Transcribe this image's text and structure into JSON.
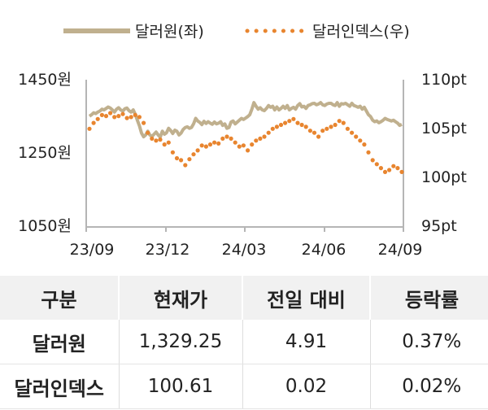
{
  "chart_data": {
    "type": "line",
    "legend": {
      "placement": "top",
      "dollar_label": "달러원(좌)",
      "index_label": "달러인덱스(우)"
    },
    "x_ticks": [
      "23/09",
      "23/12",
      "24/03",
      "24/06",
      "24/09"
    ],
    "y_left": {
      "ticks": [
        "1450원",
        "1250원",
        "1050원"
      ],
      "range": [
        1050,
        1450
      ]
    },
    "y_right": {
      "ticks": [
        "110pt",
        "105pt",
        "100pt",
        "95pt"
      ],
      "range": [
        95,
        110
      ]
    },
    "series": [
      {
        "name": "달러원(좌)",
        "axis": "left",
        "color": "#c0b08e",
        "style": "solid",
        "values": [
          1351,
          1355,
          1360,
          1358,
          1362,
          1365,
          1370,
          1368,
          1372,
          1376,
          1373,
          1368,
          1362,
          1370,
          1374,
          1368,
          1365,
          1371,
          1373,
          1366,
          1362,
          1368,
          1356,
          1340,
          1325,
          1305,
          1295,
          1300,
          1310,
          1300,
          1296,
          1302,
          1308,
          1300,
          1294,
          1310,
          1302,
          1306,
          1318,
          1312,
          1304,
          1313,
          1310,
          1300,
          1305,
          1315,
          1320,
          1322,
          1318,
          1320,
          1330,
          1345,
          1338,
          1334,
          1328,
          1337,
          1331,
          1336,
          1332,
          1329,
          1335,
          1330,
          1332,
          1336,
          1326,
          1330,
          1318,
          1320,
          1335,
          1338,
          1330,
          1335,
          1340,
          1345,
          1342,
          1346,
          1350,
          1355,
          1370,
          1388,
          1378,
          1370,
          1374,
          1368,
          1366,
          1372,
          1380,
          1375,
          1378,
          1368,
          1376,
          1368,
          1372,
          1378,
          1372,
          1380,
          1368,
          1372,
          1375,
          1370,
          1380,
          1385,
          1376,
          1378,
          1372,
          1380,
          1382,
          1385,
          1386,
          1382,
          1384,
          1388,
          1382,
          1380,
          1384,
          1386,
          1386,
          1382,
          1380,
          1388,
          1378,
          1385,
          1384,
          1386,
          1382,
          1378,
          1386,
          1380,
          1378,
          1375,
          1378,
          1370,
          1375,
          1365,
          1355,
          1350,
          1340,
          1336,
          1338,
          1333,
          1336,
          1340,
          1345,
          1342,
          1340,
          1338,
          1340,
          1336,
          1332,
          1326,
          1329
        ]
      },
      {
        "name": "달러인덱스(우)",
        "axis": "right",
        "color": "#e8852f",
        "style": "dotted",
        "values": [
          105.0,
          105.6,
          106.0,
          106.4,
          106.3,
          106.6,
          106.2,
          106.3,
          106.5,
          106.1,
          106.2,
          106.4,
          106.2,
          105.6,
          104.6,
          104.0,
          103.8,
          103.9,
          103.4,
          103.6,
          102.6,
          102.0,
          101.8,
          101.3,
          101.9,
          102.4,
          102.8,
          103.3,
          103.2,
          103.4,
          103.6,
          103.5,
          104.0,
          104.2,
          104.0,
          103.6,
          103.2,
          103.3,
          102.8,
          103.4,
          103.8,
          104.0,
          104.2,
          104.6,
          105.0,
          105.2,
          105.4,
          105.6,
          105.8,
          106.0,
          105.6,
          105.4,
          105.2,
          104.8,
          104.6,
          104.2,
          104.8,
          105.0,
          105.2,
          105.4,
          105.8,
          105.6,
          105.0,
          104.6,
          104.2,
          103.8,
          103.4,
          102.6,
          101.8,
          101.4,
          101.0,
          100.6,
          100.8,
          101.2,
          101.0,
          100.6
        ]
      }
    ]
  },
  "table": {
    "headers": [
      "구분",
      "현재가",
      "전일 대비",
      "등락률"
    ],
    "rows": [
      [
        "달러원",
        "1,329.25",
        "4.91",
        "0.37%"
      ],
      [
        "달러인덱스",
        "100.61",
        "0.02",
        "0.02%"
      ]
    ]
  }
}
